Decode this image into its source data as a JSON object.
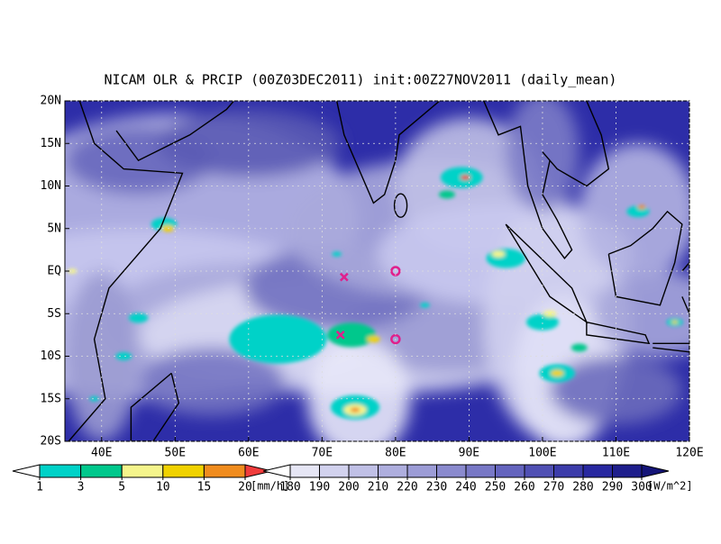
{
  "map": {
    "title": "NICAM OLR & PRCIP (00Z03DEC2011) init:00Z27NOV2011 (daily_mean)",
    "xlim": [
      35,
      120
    ],
    "ylim": [
      -20,
      20
    ],
    "xticks": [
      {
        "value": 40,
        "label": "40E"
      },
      {
        "value": 50,
        "label": "50E"
      },
      {
        "value": 60,
        "label": "60E"
      },
      {
        "value": 70,
        "label": "70E"
      },
      {
        "value": 80,
        "label": "80E"
      },
      {
        "value": 90,
        "label": "90E"
      },
      {
        "value": 100,
        "label": "100E"
      },
      {
        "value": 110,
        "label": "110E"
      },
      {
        "value": 120,
        "label": "120E"
      }
    ],
    "yticks": [
      {
        "value": 20,
        "label": "20N"
      },
      {
        "value": 15,
        "label": "15N"
      },
      {
        "value": 10,
        "label": "10N"
      },
      {
        "value": 5,
        "label": "5N"
      },
      {
        "value": 0,
        "label": "EQ"
      },
      {
        "value": -5,
        "label": "5S"
      },
      {
        "value": -10,
        "label": "10S"
      },
      {
        "value": -15,
        "label": "15S"
      },
      {
        "value": -20,
        "label": "20S"
      }
    ],
    "grid": true,
    "precip_scale": {
      "levels": [
        1,
        3,
        5,
        10,
        15,
        20
      ],
      "colors": [
        "#ffffff",
        "#00d2c8",
        "#00c88c",
        "#f5f58c",
        "#f0d200",
        "#f08c1e",
        "#f03c3c"
      ],
      "unit": "[mm/h]"
    },
    "olr_scale": {
      "levels": [
        180,
        190,
        200,
        210,
        220,
        230,
        240,
        250,
        260,
        270,
        280,
        290,
        300
      ],
      "colors": [
        "#ffffff",
        "#e6e6f5",
        "#d2d2ee",
        "#c0c0e6",
        "#aeaede",
        "#9c9cd6",
        "#8a8ace",
        "#7878c6",
        "#6464be",
        "#5050b4",
        "#3c3caa",
        "#2828a0",
        "#1e1e8c",
        "#141478"
      ],
      "unit": "[W/m^2]"
    }
  }
}
